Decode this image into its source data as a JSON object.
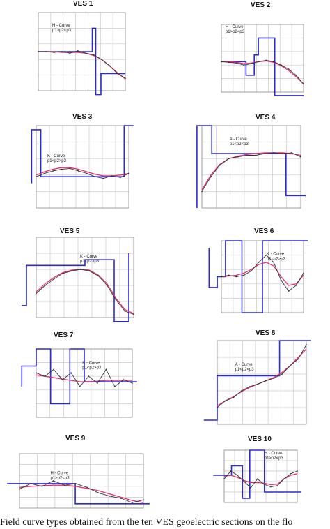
{
  "caption": "Field curve types obtained from the ten VES geoelectric sections on the flo",
  "colors": {
    "model": "#2b2bd6",
    "fit": "#e0306a",
    "field": "#333333",
    "grid": "#c8c8c8",
    "frame": "#888888"
  },
  "chart_data": [
    {
      "id": "ves1",
      "type": "line",
      "title": "VES 1",
      "curve_type": "H - Curve",
      "relation": "p1>p2<p3",
      "field_y": [
        0.5,
        0.5,
        0.51,
        0.5,
        0.52,
        0.49,
        0.52,
        0.54,
        0.6,
        0.68,
        0.78,
        0.84
      ],
      "fit_y": [
        0.5,
        0.5,
        0.5,
        0.51,
        0.51,
        0.51,
        0.52,
        0.55,
        0.6,
        0.68,
        0.77,
        0.85
      ],
      "model_x": [
        0,
        0.62,
        0.62,
        0.66,
        0.66,
        0.72,
        0.72,
        1.0
      ],
      "model_y": [
        0.5,
        0.5,
        0.2,
        0.2,
        1.05,
        1.05,
        0.78,
        0.78
      ]
    },
    {
      "id": "ves2",
      "type": "line",
      "title": "VES 2",
      "curve_type": "H - Curve",
      "relation": "p1>p2<p3",
      "field_y": [
        0.55,
        0.56,
        0.57,
        0.6,
        0.58,
        0.55,
        0.53,
        0.55,
        0.6,
        0.66,
        0.75,
        0.88
      ],
      "fit_y": [
        0.55,
        0.55,
        0.56,
        0.58,
        0.57,
        0.55,
        0.54,
        0.56,
        0.61,
        0.68,
        0.77,
        0.88
      ],
      "model_x": [
        0,
        0.3,
        0.3,
        0.4,
        0.4,
        0.45,
        0.45,
        0.65,
        0.65,
        1.0
      ],
      "model_y": [
        0.55,
        0.55,
        0.75,
        0.75,
        0.45,
        0.45,
        0.2,
        0.2,
        1.05,
        1.05
      ]
    },
    {
      "id": "ves3",
      "type": "line",
      "title": "VES 3",
      "curve_type": "K - Curve",
      "relation": "p1<p2>p3",
      "field_y": [
        0.62,
        0.58,
        0.55,
        0.53,
        0.52,
        0.55,
        0.58,
        0.62,
        0.64,
        0.61,
        0.63,
        0.58
      ],
      "fit_y": [
        0.6,
        0.56,
        0.53,
        0.51,
        0.51,
        0.53,
        0.56,
        0.59,
        0.61,
        0.61,
        0.6,
        0.58
      ],
      "model_x": [
        -0.05,
        -0.05,
        0.05,
        0.05,
        0.95,
        0.95,
        1.05
      ],
      "model_y": [
        0.7,
        0.05,
        0.05,
        0.62,
        0.62,
        0.0,
        0.0
      ]
    },
    {
      "id": "ves4",
      "type": "line",
      "title": "VES 4",
      "curve_type": "A - Curve",
      "relation": "p1<p2<p3",
      "field_y": [
        0.8,
        0.62,
        0.48,
        0.4,
        0.38,
        0.36,
        0.36,
        0.34,
        0.33,
        0.34,
        0.33,
        0.38
      ],
      "fit_y": [
        0.78,
        0.6,
        0.47,
        0.4,
        0.37,
        0.35,
        0.34,
        0.33,
        0.33,
        0.33,
        0.34,
        0.36
      ],
      "model_x": [
        -0.05,
        -0.05,
        0.1,
        0.1,
        0.85,
        0.85,
        1.05
      ],
      "model_y": [
        1.0,
        0.0,
        0.0,
        0.34,
        0.34,
        0.85,
        0.85
      ]
    },
    {
      "id": "ves5",
      "type": "line",
      "title": "VES 5",
      "curve_type": "K - Curve",
      "relation": "p1<p2>p3",
      "field_y": [
        0.7,
        0.6,
        0.52,
        0.45,
        0.42,
        0.4,
        0.42,
        0.48,
        0.6,
        0.78,
        0.92,
        0.96
      ],
      "fit_y": [
        0.68,
        0.58,
        0.5,
        0.44,
        0.41,
        0.4,
        0.41,
        0.47,
        0.58,
        0.76,
        0.9,
        0.95
      ],
      "model_x": [
        -0.15,
        -0.15,
        -0.1,
        -0.1,
        0.5,
        0.5,
        0.8,
        0.8,
        0.95,
        0.95
      ],
      "model_y": [
        0.85,
        0.85,
        0.85,
        0.35,
        0.35,
        0.28,
        0.28,
        1.05,
        1.05,
        0.2
      ]
    },
    {
      "id": "ves6",
      "type": "line",
      "title": "VES 6",
      "curve_type": "K - Curve",
      "relation": "p1<p2>p3",
      "field_y": [
        0.5,
        0.48,
        0.5,
        0.48,
        0.42,
        0.3,
        0.2,
        0.3,
        0.55,
        0.7,
        0.62,
        0.45
      ],
      "fit_y": [
        0.5,
        0.49,
        0.48,
        0.45,
        0.4,
        0.33,
        0.3,
        0.35,
        0.5,
        0.62,
        0.6,
        0.48
      ],
      "model_x": [
        -0.15,
        -0.15,
        -0.05,
        -0.05,
        0.05,
        0.05,
        0.25,
        0.25,
        0.5,
        0.5,
        1.05
      ],
      "model_y": [
        0.1,
        0.65,
        0.65,
        0.5,
        0.5,
        0.0,
        0.0,
        1.0,
        1.0,
        0.0,
        0.0
      ]
    },
    {
      "id": "ves7",
      "type": "line",
      "title": "VES 7",
      "curve_type": "K - Curve",
      "relation": "p1<p2>p3",
      "field_y": [
        0.35,
        0.4,
        0.3,
        0.45,
        0.35,
        0.55,
        0.4,
        0.5,
        0.3,
        0.55,
        0.45,
        0.5
      ],
      "fit_y": [
        0.38,
        0.4,
        0.42,
        0.44,
        0.46,
        0.48,
        0.48,
        0.47,
        0.46,
        0.46,
        0.46,
        0.46
      ],
      "model_x": [
        -0.15,
        -0.15,
        0.0,
        0.0,
        0.15,
        0.15,
        0.35,
        0.35,
        0.5,
        0.5,
        1.05
      ],
      "model_y": [
        0.55,
        0.25,
        0.25,
        0.0,
        0.0,
        0.8,
        0.8,
        0.0,
        0.0,
        0.48,
        0.48
      ]
    },
    {
      "id": "ves8",
      "type": "line",
      "title": "VES 8",
      "curve_type": "A - Curve",
      "relation": "p1<p2<p3",
      "field_y": [
        0.8,
        0.72,
        0.68,
        0.6,
        0.55,
        0.52,
        0.48,
        0.45,
        0.4,
        0.3,
        0.22,
        0.05
      ],
      "fit_y": [
        0.78,
        0.72,
        0.67,
        0.61,
        0.56,
        0.52,
        0.48,
        0.44,
        0.38,
        0.3,
        0.2,
        0.1
      ],
      "model_x": [
        -0.15,
        -0.15,
        0.0,
        0.0,
        0.7,
        0.7,
        1.05
      ],
      "model_y": [
        0.95,
        0.95,
        0.95,
        0.42,
        0.42,
        0.0,
        0.0
      ]
    },
    {
      "id": "ves9",
      "type": "line",
      "title": "VES 9",
      "curve_type": "H - Curve",
      "relation": "p1>p2<p3",
      "field_y": [
        0.65,
        0.55,
        0.6,
        0.5,
        0.58,
        0.55,
        0.62,
        0.72,
        0.78,
        0.82,
        0.9,
        0.85
      ],
      "fit_y": [
        0.62,
        0.6,
        0.59,
        0.58,
        0.58,
        0.6,
        0.64,
        0.68,
        0.74,
        0.8,
        0.86,
        0.9
      ],
      "model_x": [
        -0.1,
        0.45,
        0.45,
        1.05
      ],
      "model_y": [
        0.55,
        0.55,
        0.92,
        0.92
      ]
    },
    {
      "id": "ves10",
      "type": "line",
      "title": "VES 10",
      "curve_type": "H - Curve",
      "relation": "p1>p2<p3",
      "field_y": [
        0.55,
        0.4,
        0.48,
        0.6,
        0.72,
        0.55,
        0.65,
        0.7,
        0.68,
        0.55,
        0.45,
        0.4
      ],
      "fit_y": [
        0.5,
        0.48,
        0.52,
        0.58,
        0.62,
        0.62,
        0.63,
        0.66,
        0.65,
        0.55,
        0.48,
        0.45
      ],
      "model_x": [
        -0.15,
        0.1,
        0.1,
        0.25,
        0.25,
        0.35,
        0.35,
        0.55,
        0.55,
        1.05
      ],
      "model_y": [
        0.48,
        0.48,
        0.3,
        0.3,
        0.92,
        0.92,
        0.0,
        0.0,
        0.8,
        0.8
      ]
    }
  ]
}
